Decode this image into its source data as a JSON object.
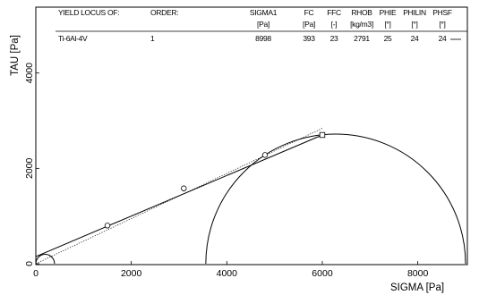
{
  "chart_data": {
    "type": "scatter",
    "title": "",
    "xlabel": "SIGMA [Pa]",
    "ylabel": "TAU [Pa]",
    "xlim": [
      0,
      9000
    ],
    "ylim": [
      0,
      4800
    ],
    "x_ticks": [
      "0",
      "2000",
      "4000",
      "6000",
      "8000"
    ],
    "y_ticks": [
      "0",
      "2000",
      "4000"
    ],
    "header": {
      "columns": [
        {
          "key": "locus",
          "title": "YIELD LOCUS OF:",
          "unit": ""
        },
        {
          "key": "order",
          "title": "ORDER:",
          "unit": ""
        },
        {
          "key": "sigma1",
          "title": "SIGMA1",
          "unit": "[Pa]"
        },
        {
          "key": "fc",
          "title": "FC",
          "unit": "[Pa]"
        },
        {
          "key": "ffc",
          "title": "FFC",
          "unit": "[-]"
        },
        {
          "key": "rhob",
          "title": "RHOB",
          "unit": "[kg/m3]"
        },
        {
          "key": "phie",
          "title": "PHIE",
          "unit": "[°]"
        },
        {
          "key": "philin",
          "title": "PHILIN",
          "unit": "[°]"
        },
        {
          "key": "phisf",
          "title": "PHSF",
          "unit": "[°]"
        }
      ],
      "row": {
        "locus": "Ti-6Al-4V",
        "order": "1",
        "sigma1": "8998",
        "fc": "393",
        "ffc": "23",
        "rhob": "2791",
        "phie": "25",
        "philin": "24",
        "phisf": "24"
      }
    },
    "series": [
      {
        "kind": "measured-points",
        "marker": "circle",
        "points": [
          [
            1500,
            800
          ],
          [
            3100,
            1580
          ],
          [
            4800,
            2280
          ]
        ]
      },
      {
        "kind": "preshear-point",
        "marker": "square",
        "points": [
          [
            6000,
            2700
          ]
        ]
      },
      {
        "kind": "yield-locus-line",
        "style": "solid",
        "points": [
          [
            0,
            150
          ],
          [
            6000,
            2700
          ]
        ]
      },
      {
        "kind": "effective-yield-locus",
        "style": "dotted",
        "points": [
          [
            0,
            0
          ],
          [
            6000,
            2840
          ]
        ]
      },
      {
        "kind": "major-mohr-circle",
        "center": 6280,
        "radius": 2720
      },
      {
        "kind": "unconfined-mohr-circle",
        "center": 196,
        "radius": 196
      }
    ]
  }
}
